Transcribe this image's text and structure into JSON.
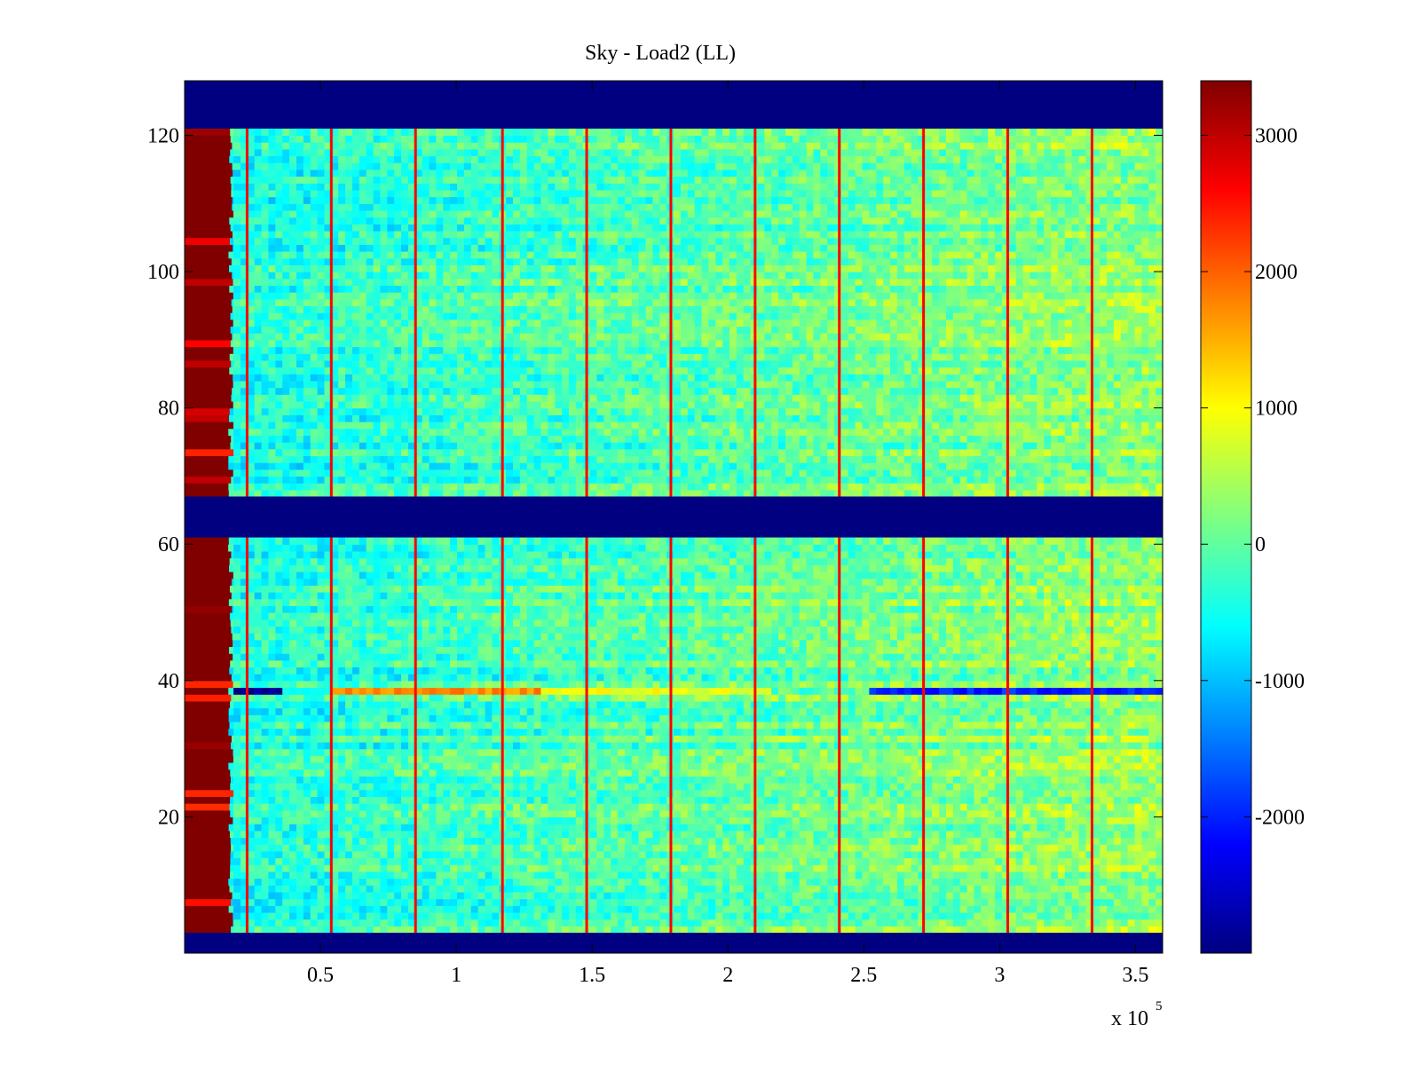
{
  "chart_data": {
    "type": "heatmap",
    "title": "Sky - Load2 (LL)",
    "xlabel": "",
    "ylabel": "",
    "x_multiplier_label": "x 10",
    "x_multiplier_exponent": "5",
    "xlim": [
      0,
      360000
    ],
    "ylim": [
      0,
      128
    ],
    "xticks": [
      {
        "value": 50000,
        "label": "0.5"
      },
      {
        "value": 100000,
        "label": "1"
      },
      {
        "value": 150000,
        "label": "1.5"
      },
      {
        "value": 200000,
        "label": "2"
      },
      {
        "value": 250000,
        "label": "2.5"
      },
      {
        "value": 300000,
        "label": "3"
      },
      {
        "value": 350000,
        "label": "3.5"
      }
    ],
    "yticks": [
      {
        "value": 20,
        "label": "20"
      },
      {
        "value": 40,
        "label": "40"
      },
      {
        "value": 60,
        "label": "60"
      },
      {
        "value": 80,
        "label": "80"
      },
      {
        "value": 100,
        "label": "100"
      },
      {
        "value": 120,
        "label": "120"
      }
    ],
    "colormap": "jet",
    "color_range": [
      -3000,
      3400
    ],
    "colorbar_ticks": [
      {
        "value": 3000,
        "label": "3000"
      },
      {
        "value": 2000,
        "label": "2000"
      },
      {
        "value": 1000,
        "label": "1000"
      },
      {
        "value": 0,
        "label": "0"
      },
      {
        "value": -1000,
        "label": "-1000"
      },
      {
        "value": -2000,
        "label": "-2000"
      }
    ],
    "background_value": -3000,
    "baseline_value": -50,
    "masked_row_bands": [
      [
        0,
        3
      ],
      [
        61,
        67
      ],
      [
        121,
        128
      ]
    ],
    "left_saturated_region": {
      "x_end": 17000,
      "value": 3400
    },
    "spike_columns_x": [
      23000,
      54000,
      85000,
      117000,
      148000,
      179000,
      210000,
      241000,
      272000,
      303000,
      334000
    ],
    "spike_value": 2600,
    "anomalous_row": {
      "y": 38.5,
      "segments": [
        {
          "x_start": 17000,
          "x_end": 35000,
          "value": -2900
        },
        {
          "x_start": 54000,
          "x_end": 130000,
          "value": 1700
        },
        {
          "x_start": 130000,
          "x_end": 215000,
          "value": 900
        },
        {
          "x_start": 250000,
          "x_end": 360000,
          "value": -2000
        }
      ]
    },
    "trend": "values rise from about -400 near x=30000 to about +400 near x=360000"
  }
}
